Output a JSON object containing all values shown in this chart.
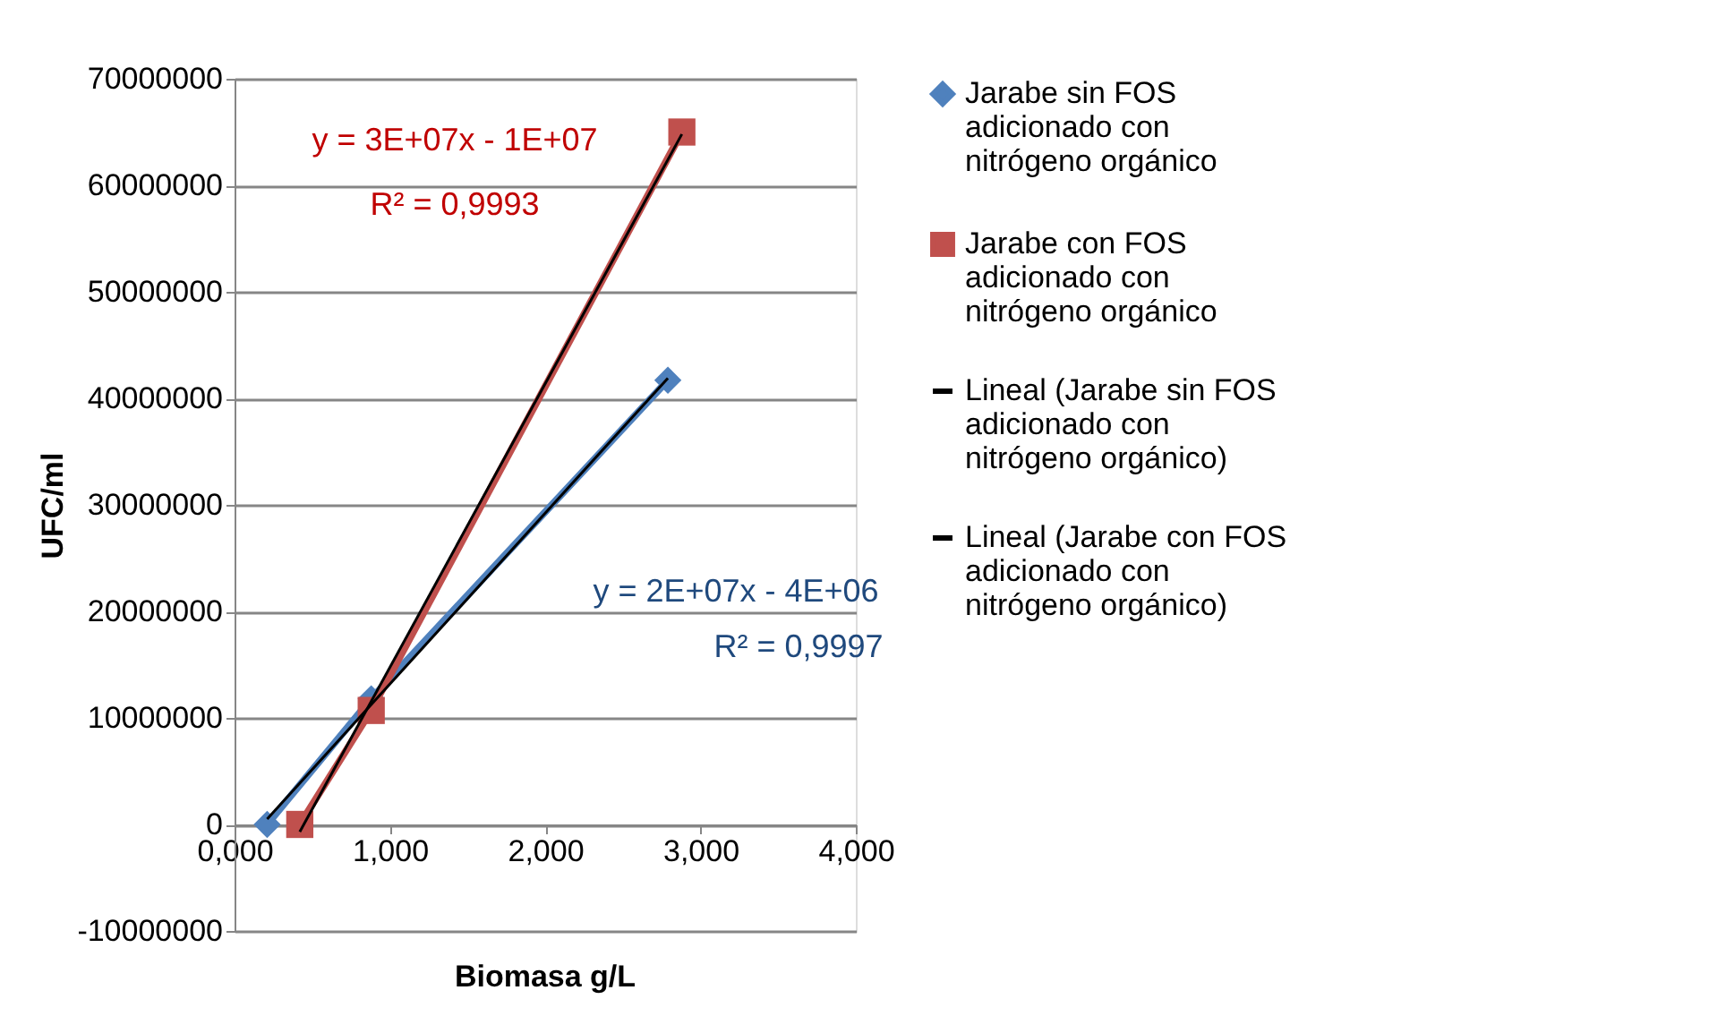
{
  "chart_data": {
    "type": "line",
    "xlabel": "Biomasa g/L",
    "ylabel": "UFC/ml",
    "xlim": [
      0,
      4
    ],
    "xticks": [
      {
        "value": 0,
        "label": "0,000"
      },
      {
        "value": 1,
        "label": "1,000"
      },
      {
        "value": 2,
        "label": "2,000"
      },
      {
        "value": 3,
        "label": "3,000"
      },
      {
        "value": 4,
        "label": "4,000"
      }
    ],
    "ylim": [
      -10000000,
      70000000
    ],
    "yticks": [
      -10000000,
      0,
      10000000,
      20000000,
      30000000,
      40000000,
      50000000,
      60000000,
      70000000
    ],
    "grid": "y",
    "legend": "right",
    "series": [
      {
        "name": "Jarabe sin FOS adicionado con nitrógeno orgánico",
        "color": "#4f81bd",
        "marker": "diamond",
        "x": [
          0.21,
          0.88,
          2.79
        ],
        "values": [
          0,
          11800000,
          41700000
        ]
      },
      {
        "name": "Jarabe con FOS adicionado con nitrógeno orgánico",
        "color": "#c0504d",
        "marker": "square",
        "x": [
          0.42,
          0.88,
          2.88
        ],
        "values": [
          0,
          10700000,
          65000000
        ]
      },
      {
        "name": "Lineal (Jarabe sin FOS adicionado con nitrógeno orgánico)",
        "color": "#000000",
        "x": [
          0.21,
          2.79
        ],
        "values": [
          500000,
          41900000
        ]
      },
      {
        "name": "Lineal (Jarabe con FOS adicionado con nitrógeno orgánico)",
        "color": "#000000",
        "x": [
          0.42,
          2.88
        ],
        "values": [
          -700000,
          64800000
        ]
      }
    ],
    "annotations": [
      "y = 3E+07x - 1E+07",
      "R² = 0,9993",
      "y = 2E+07x - 4E+06",
      "R² = 0,9997"
    ]
  }
}
